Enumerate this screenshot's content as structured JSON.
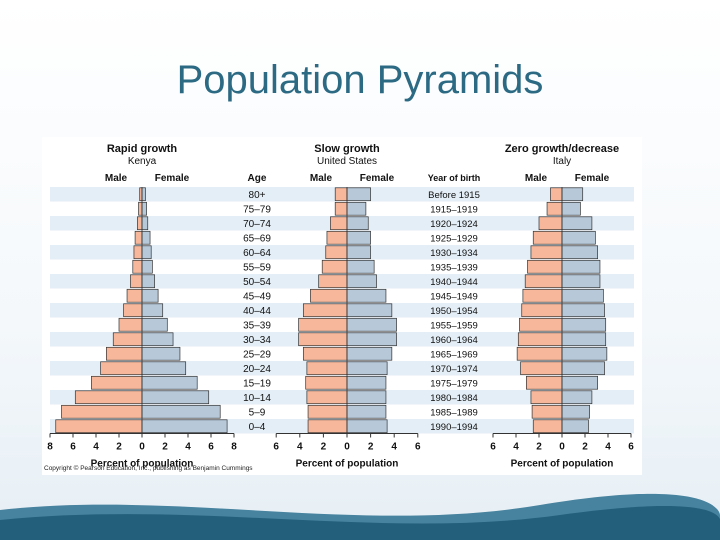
{
  "slide": {
    "title": "Population Pyramids"
  },
  "labels": {
    "age_header": "Age",
    "birth_header": "Year of birth",
    "male": "Male",
    "female": "Female",
    "xlabel": "Percent of population"
  },
  "ages": [
    "80+",
    "75–79",
    "70–74",
    "65–69",
    "60–64",
    "55–59",
    "50–54",
    "45–49",
    "40–44",
    "35–39",
    "30–34",
    "25–29",
    "20–24",
    "15–19",
    "10–14",
    "5–9",
    "0–4"
  ],
  "birth_years": [
    "Before 1915",
    "1915–1919",
    "1920–1924",
    "1925–1929",
    "1930–1934",
    "1935–1939",
    "1940–1944",
    "1945–1949",
    "1950–1954",
    "1955–1959",
    "1960–1964",
    "1965–1969",
    "1970–1974",
    "1975–1979",
    "1980–1984",
    "1985–1989",
    "1990–1994"
  ],
  "colors": {
    "male": "#f7b79b",
    "female": "#b7c9d9",
    "stripe": "#e4eef6",
    "grid": "#9aaebd"
  },
  "copyright": "Copyright © Pearson Education, Inc., publishing as Benjamin Cummings",
  "chart_data": [
    {
      "type": "bar",
      "title": "Rapid growth",
      "subtitle": "Kenya",
      "xlabel": "Percent of population",
      "xticks": [
        "8",
        "6",
        "4",
        "2",
        "0",
        "2",
        "4",
        "6",
        "8"
      ],
      "xlim": [
        -8,
        8
      ],
      "categories": [
        "80+",
        "75–79",
        "70–74",
        "65–69",
        "60–64",
        "55–59",
        "50–54",
        "45–49",
        "40–44",
        "35–39",
        "30–34",
        "25–29",
        "20–24",
        "15–19",
        "10–14",
        "5–9",
        "0–4"
      ],
      "series": [
        {
          "name": "Male",
          "values": [
            0.2,
            0.3,
            0.4,
            0.6,
            0.7,
            0.8,
            1.0,
            1.3,
            1.6,
            2.0,
            2.5,
            3.1,
            3.6,
            4.4,
            5.8,
            7.0,
            7.5
          ]
        },
        {
          "name": "Female",
          "values": [
            0.3,
            0.4,
            0.5,
            0.7,
            0.8,
            0.9,
            1.1,
            1.4,
            1.8,
            2.2,
            2.7,
            3.3,
            3.8,
            4.8,
            5.8,
            6.8,
            7.4
          ]
        }
      ]
    },
    {
      "type": "bar",
      "title": "Slow growth",
      "subtitle": "United States",
      "xlabel": "Percent of population",
      "xticks": [
        "6",
        "4",
        "2",
        "0",
        "2",
        "4",
        "6"
      ],
      "xlim": [
        -6,
        6
      ],
      "categories": [
        "80+",
        "75–79",
        "70–74",
        "65–69",
        "60–64",
        "55–59",
        "50–54",
        "45–49",
        "40–44",
        "35–39",
        "30–34",
        "25–29",
        "20–24",
        "15–19",
        "10–14",
        "5–9",
        "0–4"
      ],
      "series": [
        {
          "name": "Male",
          "values": [
            1.0,
            1.0,
            1.4,
            1.7,
            1.8,
            2.1,
            2.4,
            3.1,
            3.7,
            4.1,
            4.1,
            3.7,
            3.4,
            3.5,
            3.4,
            3.3,
            3.3
          ]
        },
        {
          "name": "Female",
          "values": [
            2.0,
            1.6,
            1.8,
            2.0,
            2.0,
            2.3,
            2.5,
            3.3,
            3.8,
            4.2,
            4.2,
            3.8,
            3.4,
            3.3,
            3.3,
            3.3,
            3.4
          ]
        }
      ]
    },
    {
      "type": "bar",
      "title": "Zero growth/decrease",
      "subtitle": "Italy",
      "xlabel": "Percent of population",
      "xticks": [
        "6",
        "4",
        "2",
        "0",
        "2",
        "4",
        "6"
      ],
      "xlim": [
        -6,
        6
      ],
      "categories": [
        "80+",
        "75–79",
        "70–74",
        "65–69",
        "60–64",
        "55–59",
        "50–54",
        "45–49",
        "40–44",
        "35–39",
        "30–34",
        "25–29",
        "20–24",
        "15–19",
        "10–14",
        "5–9",
        "0–4"
      ],
      "series": [
        {
          "name": "Male",
          "values": [
            1.0,
            1.3,
            2.0,
            2.5,
            2.7,
            3.0,
            3.2,
            3.4,
            3.5,
            3.7,
            3.8,
            3.9,
            3.6,
            3.1,
            2.7,
            2.6,
            2.5
          ]
        },
        {
          "name": "Female",
          "values": [
            1.8,
            1.6,
            2.6,
            2.9,
            3.1,
            3.3,
            3.3,
            3.6,
            3.7,
            3.8,
            3.8,
            3.9,
            3.7,
            3.1,
            2.6,
            2.4,
            2.3
          ]
        }
      ]
    }
  ]
}
